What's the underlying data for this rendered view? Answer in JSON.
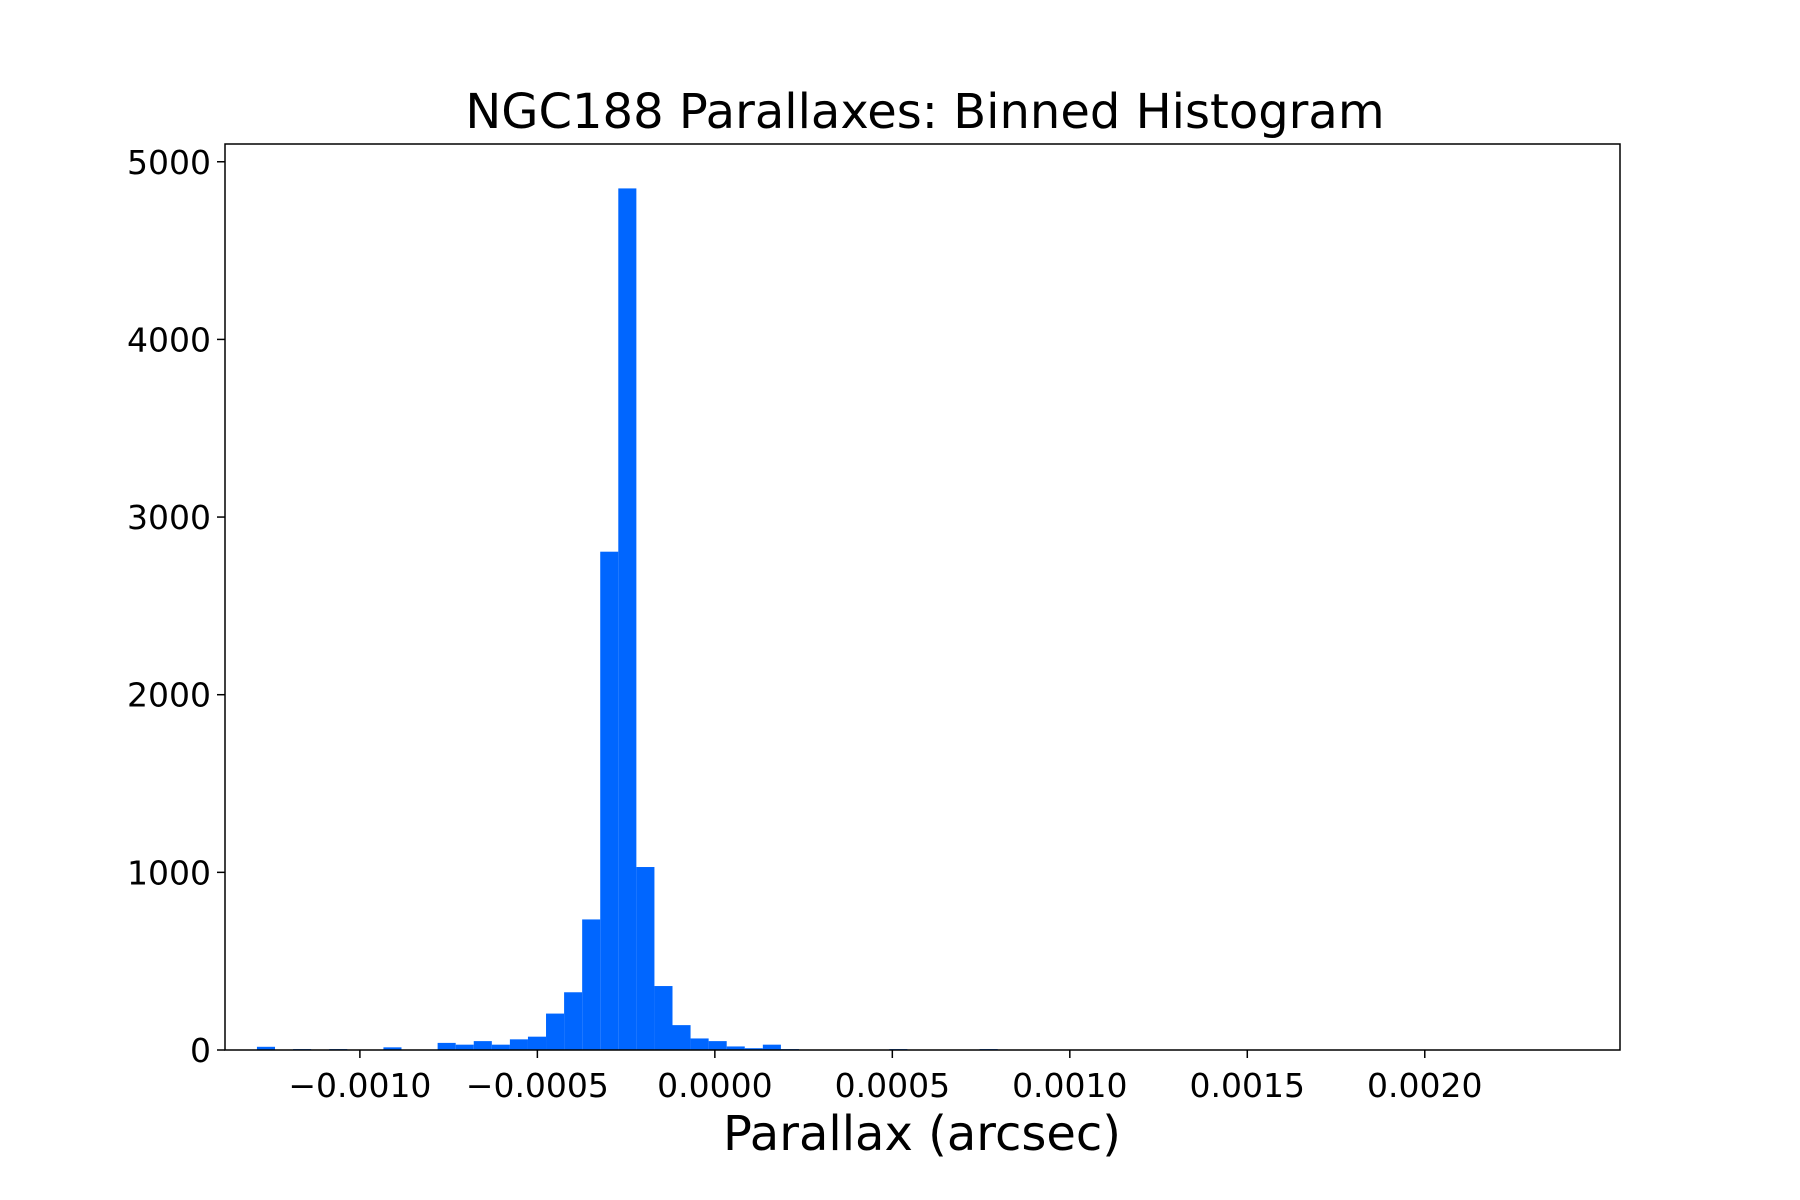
{
  "chart_data": {
    "type": "bar",
    "title": "NGC188 Parallaxes: Binned Histogram",
    "xlabel": "Parallax (arcsec)",
    "ylabel": "",
    "bar_color": "#0066ff",
    "xlim": [
      -0.00138,
      0.00255
    ],
    "ylim": [
      0,
      5100
    ],
    "xticks": [
      -0.001,
      -0.0005,
      0.0,
      0.0005,
      0.001,
      0.0015,
      0.002
    ],
    "xtick_labels": [
      "−0.0010",
      "−0.0005",
      "0.0000",
      "0.0005",
      "0.0010",
      "0.0015",
      "0.0020"
    ],
    "yticks": [
      0,
      1000,
      2000,
      3000,
      4000,
      5000
    ],
    "ytick_labels": [
      "0",
      "1000",
      "2000",
      "3000",
      "4000",
      "5000"
    ],
    "bin_start": -0.00129,
    "bin_width": 5.09e-05,
    "values": [
      18,
      0,
      5,
      0,
      5,
      0,
      0,
      15,
      0,
      0,
      40,
      30,
      50,
      30,
      60,
      75,
      205,
      325,
      735,
      2805,
      4850,
      1030,
      360,
      140,
      65,
      50,
      20,
      10,
      30,
      5,
      0,
      0,
      0,
      0,
      0,
      5,
      0,
      0,
      0,
      0,
      5
    ],
    "grid": false,
    "legend": "none"
  }
}
